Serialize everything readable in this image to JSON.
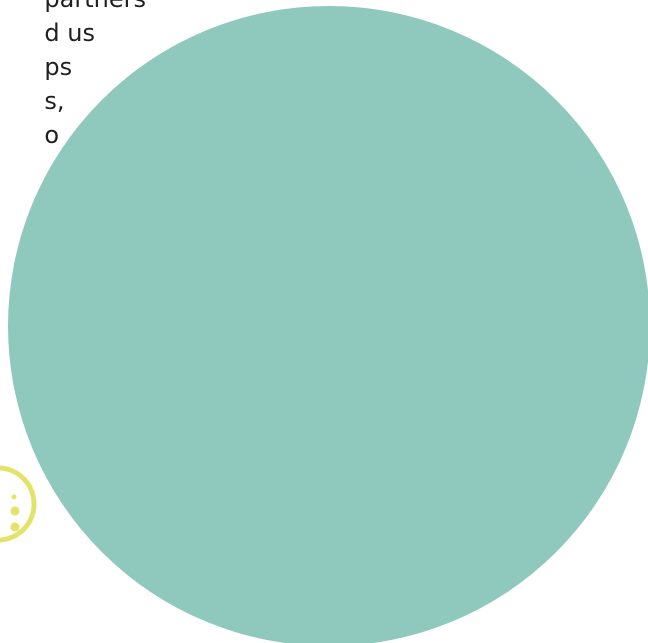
{
  "text_block": {
    "lines": [
      "partners",
      "d us",
      "ps",
      "s,",
      "o"
    ]
  },
  "colors": {
    "circle": "#8fc9bd",
    "accent": "#e3e36a",
    "text": "#1f1f1f",
    "background": "#ffffff"
  },
  "icons": {
    "accent": "dotted-arc-decoration"
  }
}
